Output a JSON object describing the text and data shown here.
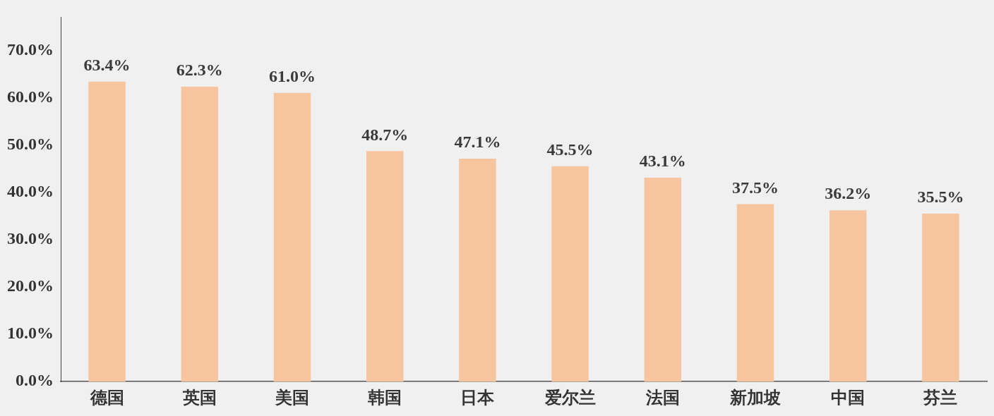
{
  "chart_data": {
    "type": "bar",
    "categories": [
      "德国",
      "英国",
      "美国",
      "韩国",
      "日本",
      "爱尔兰",
      "法国",
      "新加坡",
      "中国",
      "芬兰"
    ],
    "values": [
      63.4,
      62.3,
      61.0,
      48.7,
      47.1,
      45.5,
      43.1,
      37.5,
      36.2,
      35.5
    ],
    "value_labels": [
      "63.4%",
      "62.3%",
      "61.0%",
      "48.7%",
      "47.1%",
      "45.5%",
      "43.1%",
      "37.5%",
      "36.2%",
      "35.5%"
    ],
    "color": "#f6c49e",
    "ylim": [
      0,
      77
    ],
    "yticks": [
      {
        "value": 0,
        "label": "0.0%"
      },
      {
        "value": 10,
        "label": "10.0%"
      },
      {
        "value": 20,
        "label": "20.0%"
      },
      {
        "value": 30,
        "label": "30.0%"
      },
      {
        "value": 40,
        "label": "40.0%"
      },
      {
        "value": 50,
        "label": "50.0%"
      },
      {
        "value": 60,
        "label": "60.0%"
      },
      {
        "value": 70,
        "label": "70.0%"
      }
    ],
    "grid": false,
    "legend": false
  }
}
